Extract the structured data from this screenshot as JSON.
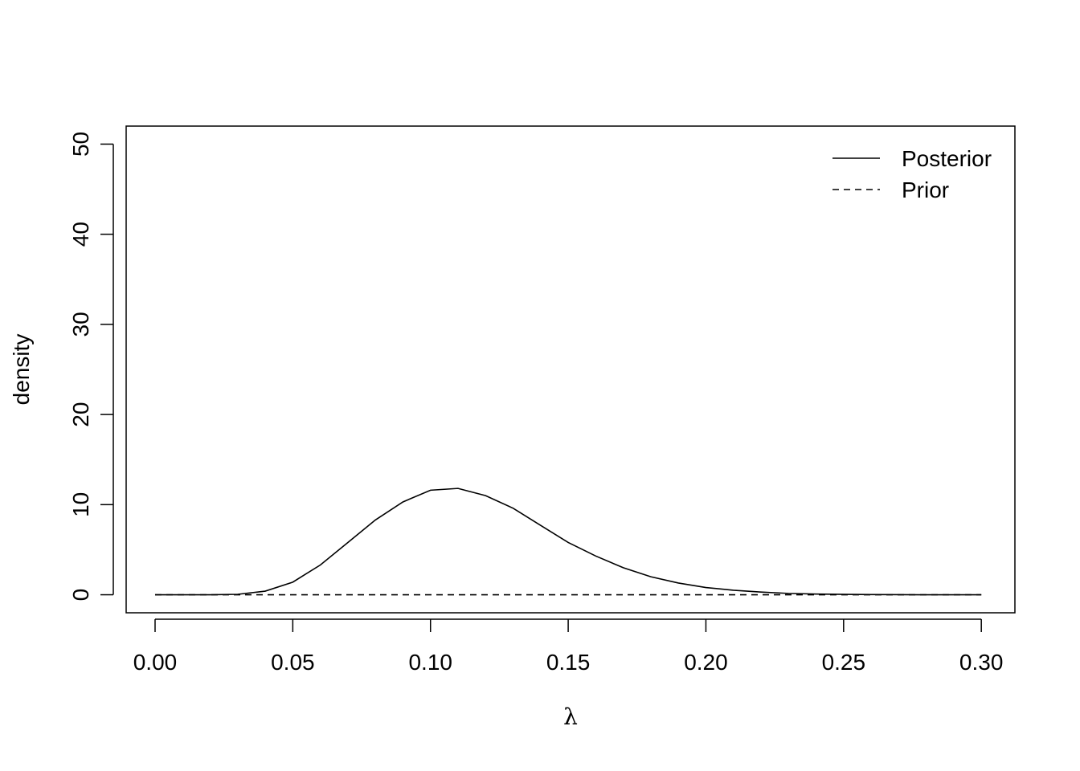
{
  "chart_data": {
    "type": "line",
    "x_label": "λ",
    "y_label": "density",
    "x": [
      0.0,
      0.01,
      0.02,
      0.03,
      0.04,
      0.05,
      0.06,
      0.07,
      0.08,
      0.09,
      0.1,
      0.11,
      0.12,
      0.13,
      0.14,
      0.15,
      0.16,
      0.17,
      0.18,
      0.19,
      0.2,
      0.21,
      0.22,
      0.23,
      0.24,
      0.25,
      0.26,
      0.27,
      0.28,
      0.29,
      0.3
    ],
    "series": [
      {
        "name": "Posterior",
        "color": "#000000",
        "dash": "solid",
        "values": [
          0,
          0,
          0,
          0.05,
          0.4,
          1.4,
          3.3,
          5.8,
          8.3,
          10.3,
          11.6,
          11.8,
          11.0,
          9.6,
          7.7,
          5.8,
          4.3,
          3.0,
          2.0,
          1.3,
          0.8,
          0.5,
          0.3,
          0.15,
          0.08,
          0.04,
          0.02,
          0.01,
          0,
          0,
          0
        ]
      },
      {
        "name": "Prior",
        "color": "#000000",
        "dash": "dashed",
        "values": [
          0,
          0,
          0,
          0,
          0,
          0,
          0,
          0,
          0,
          0,
          0,
          0,
          0,
          0,
          0,
          0,
          0,
          0,
          0,
          0,
          0,
          0,
          0,
          0,
          0,
          0,
          0,
          0,
          0,
          0,
          0
        ]
      }
    ],
    "xlim": [
      -0.0105,
      0.3122
    ],
    "xticks": [
      {
        "value": 0,
        "label": "0.00"
      },
      0.05,
      {
        "value": 0.1,
        "label": "0.10"
      },
      0.15,
      {
        "value": 0.2,
        "label": "0.20"
      },
      0.25,
      {
        "value": 0.3,
        "label": "0.30"
      }
    ],
    "ylim": [
      -2,
      52
    ],
    "yticks": [
      0,
      10,
      20,
      30,
      40,
      50
    ],
    "legend": "topright"
  }
}
